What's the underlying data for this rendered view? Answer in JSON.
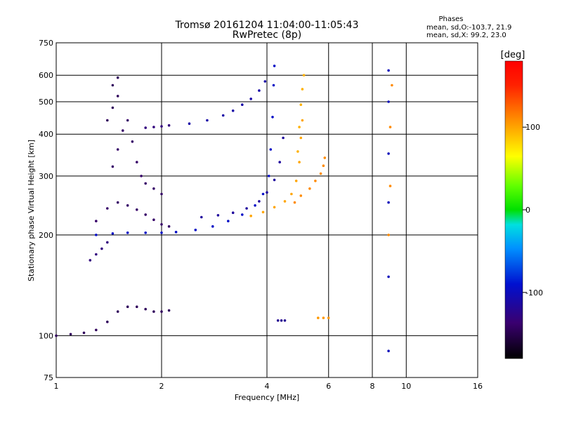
{
  "header": {
    "title_line1": "Tromsø 20161204 11:04:00-11:05:43",
    "title_line2": "RwPretec (8p)"
  },
  "stats": {
    "heading": "Phases",
    "line_o": "mean, sd,O:-103.7, 21.9",
    "line_x": "mean, sd,X:  99.2, 23.0"
  },
  "colorbar": {
    "unit_label": "[deg]",
    "tick_labels": [
      "100",
      "0",
      "-100"
    ],
    "tick_values": [
      100,
      0,
      -100
    ],
    "range": [
      -180,
      180
    ]
  },
  "chart_data": {
    "type": "scatter",
    "xlabel": "Frequency [MHz]",
    "ylabel": "Stationary phase Virtual Height [km]",
    "x_scale": "log",
    "y_scale": "log",
    "xlim": [
      1,
      16
    ],
    "ylim": [
      75,
      750
    ],
    "x_ticks": [
      1,
      2,
      4,
      6,
      8,
      10,
      16
    ],
    "x_tick_labels": [
      "1",
      "2",
      "4",
      "6",
      "8",
      "10",
      "16"
    ],
    "y_ticks": [
      75,
      100,
      200,
      300,
      400,
      500,
      600,
      750
    ],
    "y_tick_labels": [
      "75",
      "100",
      "200",
      "300",
      "400",
      "500",
      "600",
      "750"
    ],
    "grid": true,
    "color_encoding": "phase [deg]",
    "traces": [
      {
        "points": [
          [
            1.3,
            200
          ],
          [
            1.45,
            202
          ],
          [
            1.6,
            203
          ],
          [
            1.8,
            203
          ],
          [
            2.0,
            203
          ],
          [
            2.2,
            204
          ],
          [
            2.5,
            207
          ],
          [
            2.8,
            212
          ],
          [
            3.1,
            220
          ],
          [
            3.4,
            230
          ],
          [
            3.7,
            245
          ],
          [
            3.9,
            265
          ],
          [
            4.05,
            300
          ],
          [
            4.1,
            360
          ],
          [
            4.15,
            450
          ],
          [
            4.18,
            560
          ],
          [
            4.2,
            640
          ]
        ],
        "phase": -95
      },
      {
        "points": [
          [
            2.6,
            226
          ],
          [
            2.9,
            229
          ],
          [
            3.2,
            233
          ],
          [
            3.5,
            240
          ],
          [
            3.8,
            252
          ],
          [
            4.0,
            268
          ],
          [
            4.2,
            292
          ],
          [
            4.35,
            330
          ],
          [
            4.45,
            390
          ]
        ],
        "phase": -115
      },
      {
        "points": [
          [
            3.6,
            228
          ],
          [
            3.9,
            234
          ],
          [
            4.2,
            242
          ],
          [
            4.5,
            252
          ],
          [
            4.7,
            265
          ],
          [
            4.85,
            290
          ],
          [
            4.95,
            330
          ],
          [
            5.0,
            390
          ],
          [
            5.05,
            440
          ]
        ],
        "phase": 100
      },
      {
        "points": [
          [
            4.8,
            250
          ],
          [
            5.0,
            262
          ],
          [
            5.3,
            275
          ],
          [
            5.5,
            290
          ],
          [
            5.7,
            305
          ],
          [
            5.8,
            322
          ],
          [
            5.85,
            340
          ]
        ],
        "phase": 110
      },
      {
        "points": [
          [
            4.9,
            355
          ],
          [
            4.95,
            420
          ],
          [
            5.0,
            490
          ],
          [
            5.05,
            545
          ],
          [
            5.1,
            600
          ]
        ],
        "phase": 95
      },
      {
        "points": [
          [
            2.4,
            430
          ],
          [
            2.7,
            440
          ],
          [
            3.0,
            455
          ],
          [
            3.2,
            470
          ],
          [
            3.4,
            490
          ],
          [
            3.6,
            510
          ],
          [
            3.8,
            540
          ],
          [
            3.95,
            575
          ]
        ],
        "phase": -110
      },
      {
        "points": [
          [
            1.8,
            418
          ],
          [
            1.9,
            420
          ],
          [
            2.0,
            422
          ],
          [
            2.1,
            425
          ]
        ],
        "phase": -130
      },
      {
        "points": [
          [
            1.3,
            220
          ],
          [
            1.4,
            240
          ],
          [
            1.5,
            250
          ],
          [
            1.6,
            245
          ],
          [
            1.7,
            238
          ],
          [
            1.8,
            230
          ],
          [
            1.9,
            222
          ],
          [
            2.0,
            215
          ],
          [
            2.1,
            212
          ]
        ],
        "phase": -140
      },
      {
        "points": [
          [
            1.45,
            320
          ],
          [
            1.5,
            360
          ],
          [
            1.55,
            410
          ],
          [
            1.6,
            440
          ],
          [
            1.65,
            380
          ],
          [
            1.7,
            330
          ],
          [
            1.75,
            300
          ],
          [
            1.8,
            285
          ],
          [
            1.9,
            275
          ],
          [
            2.0,
            265
          ]
        ],
        "phase": -140
      },
      {
        "points": [
          [
            1.4,
            440
          ],
          [
            1.45,
            480
          ],
          [
            1.5,
            520
          ],
          [
            1.45,
            560
          ],
          [
            1.5,
            590
          ]
        ],
        "phase": -145
      },
      {
        "points": [
          [
            1.0,
            100
          ],
          [
            1.1,
            101
          ],
          [
            1.2,
            102
          ],
          [
            1.3,
            104
          ],
          [
            1.4,
            110
          ],
          [
            1.5,
            118
          ],
          [
            1.6,
            122
          ],
          [
            1.7,
            122
          ],
          [
            1.8,
            120
          ],
          [
            1.9,
            118
          ],
          [
            2.0,
            118
          ],
          [
            2.1,
            119
          ]
        ],
        "phase": -145
      },
      {
        "points": [
          [
            1.25,
            168
          ],
          [
            1.3,
            175
          ],
          [
            1.35,
            182
          ],
          [
            1.4,
            190
          ]
        ],
        "phase": -130
      },
      {
        "points": [
          [
            8.9,
            90
          ],
          [
            8.9,
            150
          ],
          [
            8.9,
            250
          ],
          [
            8.9,
            350
          ],
          [
            8.9,
            500
          ],
          [
            8.9,
            620
          ]
        ],
        "phase": -100
      },
      {
        "points": [
          [
            8.9,
            200
          ],
          [
            9.0,
            280
          ],
          [
            9.0,
            420
          ],
          [
            9.1,
            560
          ]
        ],
        "phase": 110
      },
      {
        "points": [
          [
            5.6,
            113
          ],
          [
            5.8,
            113
          ],
          [
            6.0,
            113
          ]
        ],
        "phase": 105
      },
      {
        "points": [
          [
            4.3,
            111
          ],
          [
            4.4,
            111
          ],
          [
            4.5,
            111
          ]
        ],
        "phase": -120
      }
    ]
  }
}
